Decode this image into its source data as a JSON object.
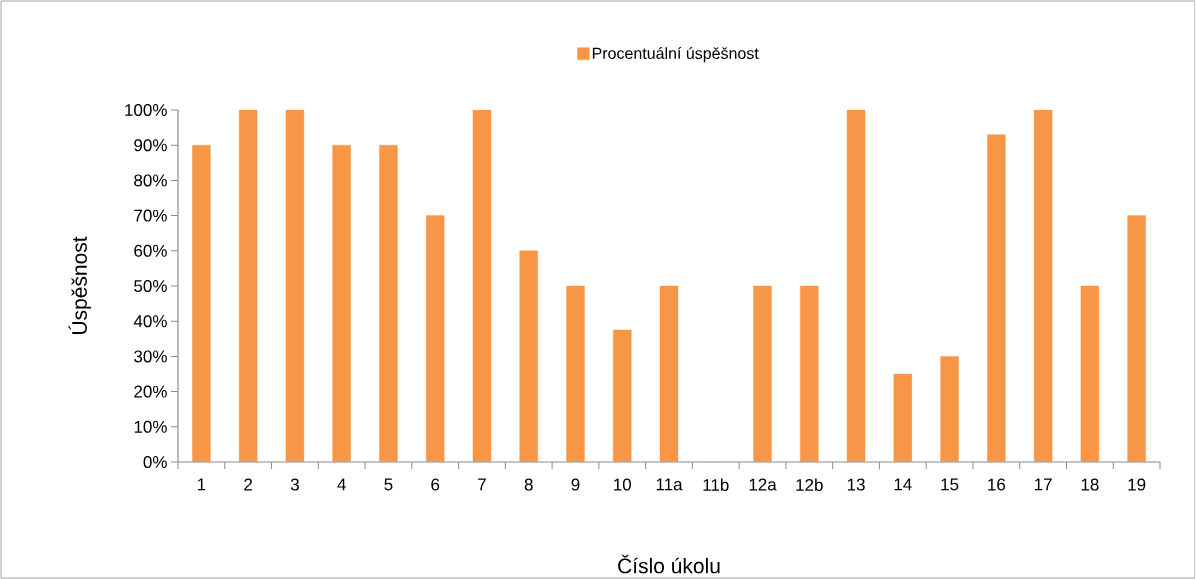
{
  "chart_data": {
    "type": "bar",
    "xlabel": "Číslo úkolu",
    "ylabel": "Úspěšnost",
    "categories": [
      "1",
      "2",
      "3",
      "4",
      "5",
      "6",
      "7",
      "8",
      "9",
      "10",
      "11a",
      "11b",
      "12a",
      "12b",
      "13",
      "14",
      "15",
      "16",
      "17",
      "18",
      "19"
    ],
    "series": [
      {
        "name": "Procentuální úspěšnost",
        "color": "#f79646",
        "values": [
          90,
          100,
          100,
          90,
          90,
          70,
          100,
          60,
          50,
          37.5,
          50,
          0,
          50,
          50,
          100,
          25,
          30,
          93,
          100,
          50,
          70
        ]
      }
    ],
    "ylim": [
      0,
      100
    ],
    "yticks": [
      {
        "value": 0,
        "label": "0%"
      },
      {
        "value": 10,
        "label": "10%"
      },
      {
        "value": 20,
        "label": "20%"
      },
      {
        "value": 30,
        "label": "30%"
      },
      {
        "value": 40,
        "label": "40%"
      },
      {
        "value": 50,
        "label": "50%"
      },
      {
        "value": 60,
        "label": "60%"
      },
      {
        "value": 70,
        "label": "70%"
      },
      {
        "value": 80,
        "label": "80%"
      },
      {
        "value": 90,
        "label": "90%"
      },
      {
        "value": 100,
        "label": "100%"
      }
    ],
    "grid": false,
    "legend": "top"
  }
}
